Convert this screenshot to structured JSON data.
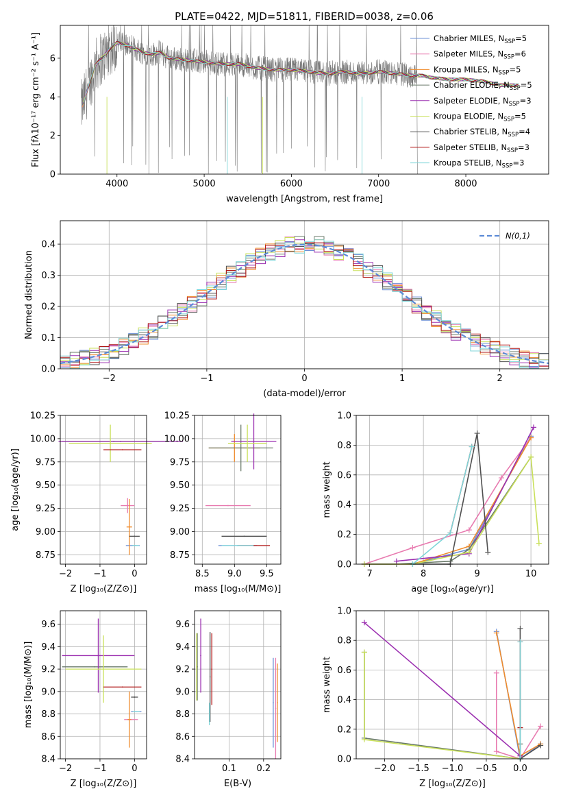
{
  "figure_title": "PLATE=0422, MJD=51811, FIBERID=0038, z=0.06",
  "series_colors": [
    "#6b8fd6",
    "#e87bb0",
    "#f08c2c",
    "#6a7a6a",
    "#9b2fb0",
    "#c9e05a",
    "#505050",
    "#b01818",
    "#7fd6d9"
  ],
  "chart_data": [
    {
      "id": "spectrum",
      "type": "line",
      "xlabel": "wavelength [Angstrom, rest frame]",
      "ylabel": "Flux [fλ10⁻¹⁷ erg cm⁻² s⁻¹ A⁻¹]",
      "xlim": [
        3350,
        8950
      ],
      "ylim": [
        0,
        7.7
      ],
      "xticks": [
        4000,
        5000,
        6000,
        7000,
        8000
      ],
      "yticks": [
        0,
        2,
        4,
        6
      ],
      "grid": false,
      "legend_position": "top-right",
      "legend": [
        {
          "label": "Chabrier MILES, N",
          "sub": "SSP",
          "tail": "=5"
        },
        {
          "label": "Salpeter MILES, N",
          "sub": "SSP",
          "tail": "=6"
        },
        {
          "label": "Kroupa MILES, N",
          "sub": "SSP",
          "tail": "=5"
        },
        {
          "label": "Chabrier ELODIE, N",
          "sub": "SSP",
          "tail": "=5"
        },
        {
          "label": "Salpeter ELODIE, N",
          "sub": "SSP",
          "tail": "=3"
        },
        {
          "label": "Kroupa ELODIE, N",
          "sub": "SSP",
          "tail": "=5"
        },
        {
          "label": "Chabrier STELIB, N",
          "sub": "SSP",
          "tail": "=4"
        },
        {
          "label": "Salpeter STELIB, N",
          "sub": "SSP",
          "tail": "=3"
        },
        {
          "label": "Kroupa STELIB, N",
          "sub": "SSP",
          "tail": "=3"
        }
      ],
      "model_x": [
        3600,
        3650,
        3700,
        3750,
        3800,
        3850,
        3900,
        3950,
        4000,
        4100,
        4200,
        4300,
        4400,
        4500,
        4600,
        4800,
        5000,
        5200,
        5400,
        5600,
        5800,
        6000,
        6200,
        6400,
        6600,
        6800,
        7000,
        7200,
        7400,
        7500,
        7600,
        7800,
        8000,
        8200,
        8400,
        8600
      ],
      "model_y": [
        3.5,
        4.2,
        4.9,
        5.6,
        5.9,
        6.1,
        6.4,
        6.6,
        6.8,
        6.7,
        6.5,
        6.3,
        6.2,
        6.3,
        6.0,
        5.9,
        5.8,
        5.7,
        5.7,
        5.5,
        5.4,
        5.4,
        5.3,
        5.2,
        5.3,
        5.2,
        5.3,
        5.2,
        5.1,
        5.1,
        5.0,
        4.9,
        4.9,
        4.8,
        4.6,
        4.6
      ]
    },
    {
      "id": "residual-histogram",
      "type": "histogram",
      "xlabel": "(data-model)/error",
      "ylabel": "Normed distribution",
      "xlim": [
        -2.5,
        2.5
      ],
      "ylim": [
        0,
        0.475
      ],
      "xticks": [
        -2,
        -1,
        0,
        1,
        2
      ],
      "yticks": [
        0.0,
        0.1,
        0.2,
        0.3,
        0.4
      ],
      "grid": true,
      "legend_position": "top-right",
      "reference_curve": {
        "name": "N(0,1)",
        "style": "dashed"
      },
      "bin_width": 0.1
    },
    {
      "id": "age-vs-z",
      "type": "scatter",
      "xlabel": "Z [log₁₀(Z/Z⊙)]",
      "ylabel": "age  [log₁₀(age/yr)]",
      "xlim": [
        -2.15,
        0.35
      ],
      "ylim": [
        8.65,
        10.25
      ],
      "xticks": [
        -2,
        -1,
        0
      ],
      "yticks": [
        8.75,
        9.0,
        9.25,
        9.5,
        9.75,
        10.0,
        10.25
      ],
      "grid": true,
      "points": [
        {
          "x": -0.05,
          "y": 8.85,
          "xerr": 0.2,
          "yerr": 0.0,
          "series": 0
        },
        {
          "x": -0.2,
          "y": 9.28,
          "xerr": 0.2,
          "yerr": 0.08,
          "series": 1
        },
        {
          "x": -0.15,
          "y": 9.05,
          "xerr": 0.08,
          "yerr": 0.3,
          "series": 2
        },
        {
          "x": -0.6,
          "y": 9.97,
          "xerr": 1.5,
          "yerr": 0.0,
          "series": 3
        },
        {
          "x": -0.4,
          "y": 9.97,
          "xerr": 1.8,
          "yerr": 0.0,
          "series": 4
        },
        {
          "x": -0.7,
          "y": 9.95,
          "xerr": 1.2,
          "yerr": 0.2,
          "series": 5
        },
        {
          "x": 0.0,
          "y": 8.95,
          "xerr": 0.15,
          "yerr": 0.0,
          "series": 6
        },
        {
          "x": -0.35,
          "y": 9.88,
          "xerr": 0.55,
          "yerr": 0.0,
          "series": 7
        },
        {
          "x": 0.03,
          "y": 8.85,
          "xerr": 0.1,
          "yerr": 0.0,
          "series": 8
        }
      ]
    },
    {
      "id": "age-vs-mass",
      "type": "scatter",
      "xlabel": "mass [log₁₀(M/M⊙)]",
      "ylabel": "",
      "xlim": [
        8.38,
        9.72
      ],
      "ylim": [
        8.65,
        10.25
      ],
      "xticks": [
        8.5,
        9.0,
        9.5
      ],
      "yticks": [
        8.75,
        9.0,
        9.25,
        9.5,
        9.75,
        10.0,
        10.25
      ],
      "grid": true,
      "points": [
        {
          "x": 9.05,
          "y": 8.85,
          "xerr": 0.3,
          "yerr": 0.0,
          "series": 0
        },
        {
          "x": 8.9,
          "y": 9.28,
          "xerr": 0.35,
          "yerr": 0.0,
          "series": 1
        },
        {
          "x": 9.0,
          "y": 9.9,
          "xerr": 0.4,
          "yerr": 0.15,
          "series": 2
        },
        {
          "x": 9.1,
          "y": 9.9,
          "xerr": 0.5,
          "yerr": 0.25,
          "series": 3
        },
        {
          "x": 9.3,
          "y": 9.97,
          "xerr": 0.35,
          "yerr": 0.3,
          "series": 4
        },
        {
          "x": 9.2,
          "y": 9.95,
          "xerr": 0.3,
          "yerr": 0.2,
          "series": 5
        },
        {
          "x": 9.15,
          "y": 8.95,
          "xerr": 0.35,
          "yerr": 0.0,
          "series": 6
        },
        {
          "x": 9.3,
          "y": 8.85,
          "xerr": 0.25,
          "yerr": 0.0,
          "series": 7
        },
        {
          "x": 9.05,
          "y": 8.85,
          "xerr": 0.25,
          "yerr": 0.0,
          "series": 8
        }
      ]
    },
    {
      "id": "mass-weight-vs-age",
      "type": "line",
      "xlabel": "age  [log₁₀(age/yr)]",
      "ylabel": "mass weight",
      "xlim": [
        6.75,
        10.33
      ],
      "ylim": [
        0,
        1.0
      ],
      "xticks": [
        7,
        8,
        9,
        10
      ],
      "yticks": [
        0.0,
        0.2,
        0.4,
        0.6,
        0.8,
        1.0
      ],
      "grid": true,
      "series": [
        {
          "x": [
            6.9,
            7.8,
            8.85,
            10.0
          ],
          "y": [
            0.0,
            0.0,
            0.1,
            0.86
          ],
          "color_index": 0
        },
        {
          "x": [
            6.9,
            7.8,
            8.85,
            9.45,
            10.0
          ],
          "y": [
            0.0,
            0.11,
            0.23,
            0.58,
            0.85
          ],
          "color_index": 1
        },
        {
          "x": [
            6.9,
            7.8,
            8.85,
            10.0
          ],
          "y": [
            0.0,
            0.0,
            0.12,
            0.85
          ],
          "color_index": 2
        },
        {
          "x": [
            6.9,
            7.5,
            8.5,
            8.85,
            10.0
          ],
          "y": [
            0.0,
            0.0,
            0.02,
            0.1,
            0.72
          ],
          "color_index": 3
        },
        {
          "x": [
            7.5,
            8.85,
            10.05
          ],
          "y": [
            0.02,
            0.07,
            0.92
          ],
          "color_index": 4
        },
        {
          "x": [
            6.9,
            7.8,
            8.85,
            10.0,
            10.15
          ],
          "y": [
            0.0,
            0.0,
            0.08,
            0.72,
            0.14
          ],
          "color_index": 5
        },
        {
          "x": [
            7.8,
            8.5,
            9.0,
            9.2
          ],
          "y": [
            0.0,
            0.0,
            0.88,
            0.08
          ],
          "color_index": 6
        },
        {
          "x": [
            8.5,
            8.9
          ],
          "y": [
            0.21,
            0.79
          ],
          "color_index": 7
        },
        {
          "x": [
            7.8,
            8.5,
            8.9
          ],
          "y": [
            0.0,
            0.21,
            0.79
          ],
          "color_index": 8
        }
      ]
    },
    {
      "id": "mass-vs-z",
      "type": "scatter",
      "xlabel": "Z [log₁₀(Z/Z⊙)]",
      "ylabel": "mass [log₁₀(M/M⊙)]",
      "xlim": [
        -2.15,
        0.35
      ],
      "ylim": [
        8.4,
        9.72
      ],
      "xticks": [
        -2,
        -1,
        0
      ],
      "yticks": [
        8.4,
        8.6,
        8.8,
        9.0,
        9.2,
        9.4,
        9.6
      ],
      "grid": true,
      "points": [
        {
          "x": 0.05,
          "y": 8.82,
          "xerr": 0.15,
          "yerr": 0.0,
          "series": 0
        },
        {
          "x": -0.1,
          "y": 8.75,
          "xerr": 0.2,
          "yerr": 0.0,
          "series": 1
        },
        {
          "x": -0.15,
          "y": 8.75,
          "xerr": 0.05,
          "yerr": 0.25,
          "series": 2
        },
        {
          "x": -1.15,
          "y": 9.22,
          "xerr": 0.95,
          "yerr": 0.0,
          "series": 3
        },
        {
          "x": -1.05,
          "y": 9.32,
          "xerr": 1.05,
          "yerr": 0.33,
          "series": 4
        },
        {
          "x": -0.9,
          "y": 9.2,
          "xerr": 1.1,
          "yerr": 0.3,
          "series": 5
        },
        {
          "x": 0.0,
          "y": 8.95,
          "xerr": 0.1,
          "yerr": 0.0,
          "series": 6
        },
        {
          "x": -0.35,
          "y": 9.04,
          "xerr": 0.55,
          "yerr": 0.0,
          "series": 7
        },
        {
          "x": 0.05,
          "y": 8.82,
          "xerr": 0.1,
          "yerr": 0.0,
          "series": 8
        }
      ]
    },
    {
      "id": "mass-vs-ebv",
      "type": "scatter",
      "xlabel": "E(B-V)",
      "ylabel": "",
      "xlim": [
        0.0,
        0.25
      ],
      "ylim": [
        8.4,
        9.72
      ],
      "xticks": [
        0.1,
        0.2
      ],
      "yticks": [
        8.4,
        8.6,
        8.8,
        9.0,
        9.2,
        9.4,
        9.6
      ],
      "grid": true,
      "points": [
        {
          "x": 0.228,
          "y": 8.9,
          "xerr": 0.0,
          "yerr": 0.4,
          "series": 0
        },
        {
          "x": 0.235,
          "y": 8.85,
          "xerr": 0.0,
          "yerr": 0.45,
          "series": 1
        },
        {
          "x": 0.24,
          "y": 8.9,
          "xerr": 0.0,
          "yerr": 0.35,
          "series": 2
        },
        {
          "x": 0.008,
          "y": 9.22,
          "xerr": 0.0,
          "yerr": 0.3,
          "series": 3
        },
        {
          "x": 0.018,
          "y": 9.32,
          "xerr": 0.0,
          "yerr": 0.33,
          "series": 4
        },
        {
          "x": 0.006,
          "y": 9.22,
          "xerr": 0.0,
          "yerr": 0.3,
          "series": 5
        },
        {
          "x": 0.045,
          "y": 9.13,
          "xerr": 0.0,
          "yerr": 0.4,
          "series": 6
        },
        {
          "x": 0.05,
          "y": 9.2,
          "xerr": 0.0,
          "yerr": 0.32,
          "series": 7
        },
        {
          "x": 0.043,
          "y": 8.8,
          "xerr": 0.0,
          "yerr": 0.1,
          "series": 8
        }
      ]
    },
    {
      "id": "mass-weight-vs-z",
      "type": "line",
      "xlabel": "Z [log₁₀(Z/Z⊙)]",
      "ylabel": "mass weight",
      "xlim": [
        -2.42,
        0.42
      ],
      "ylim": [
        0,
        1.0
      ],
      "xticks": [
        -2.0,
        -1.5,
        -1.0,
        -0.5,
        0.0
      ],
      "yticks": [
        0.0,
        0.2,
        0.4,
        0.6,
        0.8,
        1.0
      ],
      "grid": true,
      "series": [
        {
          "x": [
            -0.35,
            0.0,
            0.3
          ],
          "y": [
            0.86,
            0.0,
            0.1
          ],
          "color_index": 0
        },
        {
          "x": [
            -0.35,
            -0.35,
            0.0,
            0.3
          ],
          "y": [
            0.58,
            0.05,
            0.0,
            0.22
          ],
          "color_index": 1
        },
        {
          "x": [
            -0.35,
            0.0,
            0.3
          ],
          "y": [
            0.85,
            0.02,
            0.1
          ],
          "color_index": 2
        },
        {
          "x": [
            -2.3,
            -2.3,
            0.0,
            0.0
          ],
          "y": [
            0.72,
            0.14,
            0.0,
            0.1
          ],
          "color_index": 3
        },
        {
          "x": [
            -2.3,
            0.0
          ],
          "y": [
            0.92,
            0.02
          ],
          "color_index": 4
        },
        {
          "x": [
            -2.3,
            -2.3,
            0.0
          ],
          "y": [
            0.72,
            0.13,
            0.0
          ],
          "color_index": 5
        },
        {
          "x": [
            0.0,
            0.0,
            0.3
          ],
          "y": [
            0.88,
            0.0,
            0.09
          ],
          "color_index": 6
        },
        {
          "x": [
            0.0,
            0.0
          ],
          "y": [
            0.79,
            0.21
          ],
          "color_index": 7
        },
        {
          "x": [
            0.0,
            0.0
          ],
          "y": [
            0.79,
            0.0
          ],
          "color_index": 8
        }
      ]
    }
  ]
}
